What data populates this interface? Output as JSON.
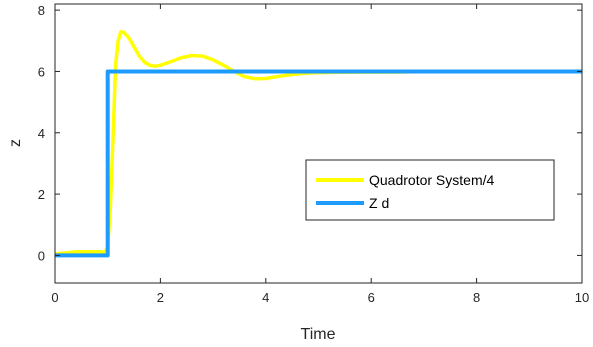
{
  "chart_data": {
    "type": "line",
    "title": "",
    "xlabel": "Time",
    "ylabel": "z",
    "xlim": [
      0,
      10
    ],
    "ylim": [
      -0.9,
      8.2
    ],
    "xticks": [
      0,
      2,
      4,
      6,
      8,
      10
    ],
    "yticks": [
      0,
      2,
      4,
      6,
      8
    ],
    "grid": false,
    "legend_position": "center-right",
    "series": [
      {
        "name": "Quadrotor System/4",
        "color": "#ffff00",
        "points": [
          [
            0,
            0.05
          ],
          [
            0.2,
            0.08
          ],
          [
            0.4,
            0.12
          ],
          [
            0.6,
            0.12
          ],
          [
            0.8,
            0.12
          ],
          [
            0.95,
            0.1
          ],
          [
            1.0,
            0.3
          ],
          [
            1.05,
            1.5
          ],
          [
            1.1,
            3.8
          ],
          [
            1.15,
            6.2
          ],
          [
            1.2,
            7.0
          ],
          [
            1.25,
            7.3
          ],
          [
            1.3,
            7.28
          ],
          [
            1.4,
            7.1
          ],
          [
            1.5,
            6.8
          ],
          [
            1.6,
            6.5
          ],
          [
            1.7,
            6.3
          ],
          [
            1.8,
            6.2
          ],
          [
            1.9,
            6.17
          ],
          [
            2.0,
            6.2
          ],
          [
            2.2,
            6.32
          ],
          [
            2.4,
            6.45
          ],
          [
            2.6,
            6.52
          ],
          [
            2.8,
            6.5
          ],
          [
            3.0,
            6.38
          ],
          [
            3.2,
            6.2
          ],
          [
            3.4,
            6.0
          ],
          [
            3.6,
            5.83
          ],
          [
            3.8,
            5.76
          ],
          [
            4.0,
            5.77
          ],
          [
            4.2,
            5.83
          ],
          [
            4.5,
            5.9
          ],
          [
            4.8,
            5.95
          ],
          [
            5.2,
            5.97
          ],
          [
            6.0,
            5.98
          ],
          [
            6.5,
            5.98
          ],
          [
            7.0,
            6.0
          ],
          [
            8.0,
            6.0
          ],
          [
            9.0,
            6.0
          ],
          [
            10.0,
            6.0
          ]
        ]
      },
      {
        "name": "Z d",
        "color": "#1e9bff",
        "points": [
          [
            0,
            0
          ],
          [
            1.0,
            0
          ],
          [
            1.0,
            6.0
          ],
          [
            10.0,
            6.0
          ]
        ]
      }
    ]
  }
}
